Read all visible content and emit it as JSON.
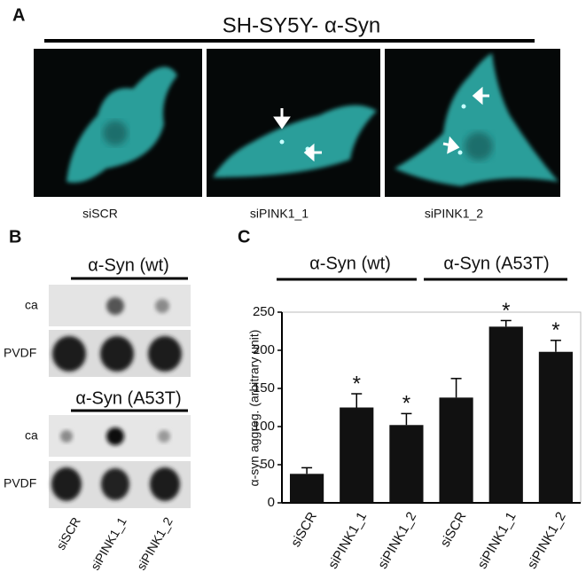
{
  "panel_a": {
    "letter": "A",
    "title": "SH-SY5Y- α-Syn",
    "images": [
      {
        "label": "siSCR"
      },
      {
        "label": "siPINK1_1"
      },
      {
        "label": "siPINK1_2"
      }
    ]
  },
  "panel_b": {
    "letter": "B",
    "groups": [
      {
        "title": "α-Syn (wt)",
        "rows": [
          "ca",
          "PVDF"
        ]
      },
      {
        "title": "α-Syn (A53T)",
        "rows": [
          "ca",
          "PVDF"
        ]
      }
    ],
    "lanes": [
      "siSCR",
      "siPINK1_1",
      "siPINK1_2"
    ]
  },
  "panel_c": {
    "letter": "C",
    "groups": [
      "α-Syn (wt)",
      "α-Syn (A53T)"
    ]
  },
  "chart_data": {
    "type": "bar",
    "y_label": "α-syn aggreg.  (arbitrary unit)",
    "categories": [
      "siSCR",
      "siPINK1_1",
      "siPINK1_2",
      "siSCR",
      "siPINK1_1",
      "siPINK1_2"
    ],
    "values": [
      38,
      125,
      102,
      138,
      231,
      198
    ],
    "errors": [
      8,
      18,
      15,
      25,
      8,
      15
    ],
    "significance": [
      null,
      "*",
      "*",
      null,
      "*",
      "*"
    ],
    "color": "#111111",
    "ylim": [
      0,
      250
    ],
    "yticks": [
      0,
      50,
      100,
      150,
      200,
      250
    ]
  }
}
